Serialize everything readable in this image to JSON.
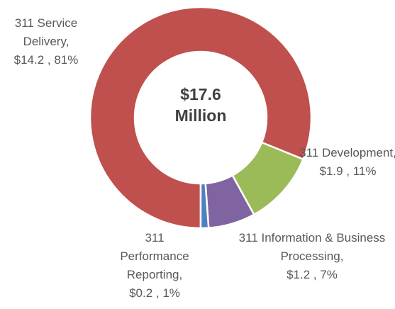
{
  "chart_data": {
    "type": "donut",
    "categories": [
      "311 Service Delivery",
      "311 Development",
      "311 Information & Business Processing",
      "311 Performance Reporting"
    ],
    "values": [
      14.2,
      1.9,
      1.2,
      0.2
    ],
    "value_labels": [
      "$14.2 , 81%",
      "$1.9 , 11%",
      "$1.2 , 7%",
      "$0.2 , 1%"
    ],
    "colors": [
      "#c0504d",
      "#9bbb59",
      "#8064a2",
      "#4f81bd"
    ],
    "center_label": [
      "$17.6",
      "Million"
    ]
  }
}
